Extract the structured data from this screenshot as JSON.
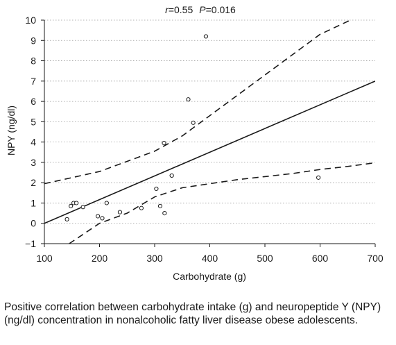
{
  "chart_data": {
    "type": "scatter",
    "annotation": {
      "r_symbol": "r",
      "r_text": "=0.55",
      "p_symbol": "P",
      "p_text": "=0.016"
    },
    "xlabel": "Carbohydrate (g)",
    "ylabel": "NPY (ng/dl)",
    "xlim": [
      100,
      700
    ],
    "ylim": [
      -1,
      10
    ],
    "x_ticks": [
      100,
      200,
      300,
      400,
      500,
      600,
      700
    ],
    "y_ticks": [
      -1,
      0,
      1,
      2,
      3,
      4,
      5,
      6,
      7,
      8,
      9,
      10
    ],
    "x_tick_labels": [
      "100",
      "200",
      "300",
      "400",
      "500",
      "600",
      "700"
    ],
    "y_tick_labels": [
      "−1",
      "0",
      "1",
      "2",
      "3",
      "4",
      "5",
      "6",
      "7",
      "8",
      "9",
      "10"
    ],
    "grid": "horizontal dotted",
    "points": [
      {
        "x": 141,
        "y": 0.2
      },
      {
        "x": 148,
        "y": 0.85
      },
      {
        "x": 153,
        "y": 1.0
      },
      {
        "x": 158,
        "y": 1.0
      },
      {
        "x": 170,
        "y": 0.8
      },
      {
        "x": 197,
        "y": 0.35
      },
      {
        "x": 205,
        "y": 0.25
      },
      {
        "x": 213,
        "y": 1.0
      },
      {
        "x": 237,
        "y": 0.55
      },
      {
        "x": 276,
        "y": 0.75
      },
      {
        "x": 303,
        "y": 1.7
      },
      {
        "x": 310,
        "y": 0.85
      },
      {
        "x": 317,
        "y": 3.95
      },
      {
        "x": 318,
        "y": 0.5
      },
      {
        "x": 331,
        "y": 2.35
      },
      {
        "x": 361,
        "y": 6.1
      },
      {
        "x": 370,
        "y": 4.95
      },
      {
        "x": 393,
        "y": 9.2
      },
      {
        "x": 597,
        "y": 2.25
      }
    ],
    "regression_line": {
      "x": [
        100,
        700
      ],
      "y": [
        0.0,
        7.0
      ]
    },
    "ci_upper": {
      "x": [
        100,
        150,
        200,
        250,
        300,
        350,
        400,
        450,
        500,
        550,
        600,
        655
      ],
      "y": [
        1.95,
        2.25,
        2.55,
        3.05,
        3.55,
        4.3,
        5.3,
        6.3,
        7.3,
        8.3,
        9.3,
        10.0
      ]
    },
    "ci_lower": {
      "x": [
        145,
        200,
        250,
        300,
        350,
        400,
        450,
        500,
        550,
        600,
        650,
        700
      ],
      "y": [
        -1.0,
        0.0,
        0.5,
        1.3,
        1.75,
        1.95,
        2.15,
        2.3,
        2.45,
        2.65,
        2.8,
        2.98
      ]
    }
  },
  "caption": "Positive correlation between carbohydrate intake (g) and neuropeptide Y (NPY) (ng/dl) concentration in nonalcoholic fatty liver disease obese adolescents."
}
